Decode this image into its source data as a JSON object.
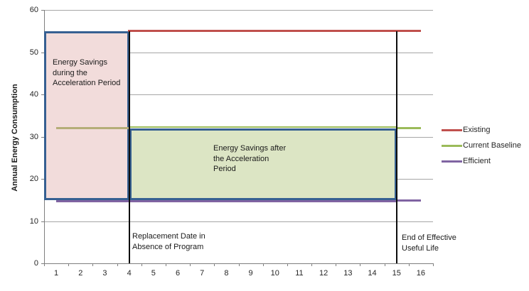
{
  "chart_data": {
    "type": "line",
    "title": "",
    "xlabel": "",
    "ylabel": "Annual Energy Consumption",
    "ylim": [
      0,
      60
    ],
    "yticks": [
      0,
      10,
      20,
      30,
      40,
      50,
      60
    ],
    "xticks": [
      "1",
      "2",
      "3",
      "4",
      "5",
      "6",
      "7",
      "8",
      "9",
      "10",
      "11",
      "12",
      "13",
      "14",
      "15",
      "16"
    ],
    "grid": "horizontal",
    "legend_position": "right",
    "series": [
      {
        "name": "Existing",
        "color": "#C0504D",
        "value": 55,
        "x_start": 4,
        "x_end": 16
      },
      {
        "name": "Current Baseline",
        "color": "#9BBB59",
        "value": 32,
        "x_start": 1,
        "x_end": 16
      },
      {
        "name": "Efficient",
        "color": "#8064A2",
        "value": 15,
        "x_start": 1,
        "x_end": 16
      }
    ],
    "regions": [
      {
        "name": "acceleration-savings",
        "x1": 0.5,
        "x2": 4,
        "y1": 15,
        "y2": 55,
        "fill": "#F2DCDB",
        "border": "#366092"
      },
      {
        "name": "post-acceleration-savings",
        "x1": 4,
        "x2": 15,
        "y1": 15,
        "y2": 32,
        "fill": "#DCE5C4",
        "border": "#366092"
      }
    ],
    "vertical_lines": [
      {
        "x": 4,
        "y1": 0,
        "y2": 55,
        "label_lines": [
          "Replacement Date in",
          "Absence of Program"
        ]
      },
      {
        "x": 15,
        "y1": 0,
        "y2": 55,
        "label_lines": [
          "End of Effective",
          "Useful Life"
        ]
      }
    ],
    "annotations": [
      {
        "name": "savings-during-acceleration",
        "lines": [
          "Energy Savings",
          "during the",
          "Acceleration Period"
        ]
      },
      {
        "name": "savings-after-acceleration",
        "lines": [
          "Energy Savings after",
          "the Acceleration",
          "Period"
        ]
      }
    ],
    "legend": [
      {
        "label": "Existing",
        "color": "#C0504D"
      },
      {
        "label": "Current Baseline",
        "color": "#9BBB59"
      },
      {
        "label": "Efficient",
        "color": "#8064A2"
      }
    ],
    "colors": {
      "grid": "#A6A6A6",
      "axis": "#7f7f7f",
      "marker_line": "#0d0d0d",
      "baseline_over_shaded": "#B5AE78"
    }
  }
}
